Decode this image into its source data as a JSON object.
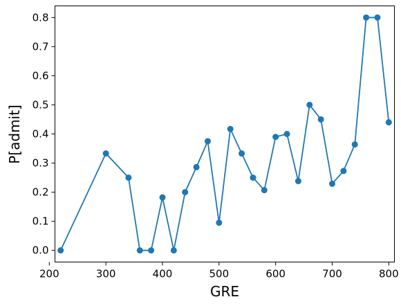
{
  "chart_data": {
    "type": "line",
    "title": "",
    "xlabel": "GRE",
    "ylabel": "P[admit]",
    "xlim": [
      210,
      810
    ],
    "ylim": [
      -0.04,
      0.84
    ],
    "xticks": [
      200,
      300,
      400,
      500,
      600,
      700,
      800
    ],
    "yticks": [
      0.0,
      0.1,
      0.2,
      0.3,
      0.4,
      0.5,
      0.6,
      0.7,
      0.8
    ],
    "xtick_labels": [
      "200",
      "300",
      "400",
      "500",
      "600",
      "700",
      "800"
    ],
    "ytick_labels": [
      "0.0",
      "0.1",
      "0.2",
      "0.3",
      "0.4",
      "0.5",
      "0.6",
      "0.7",
      "0.8"
    ],
    "grid": false,
    "series": [
      {
        "color": "#1f77b4",
        "marker": "circle",
        "x": [
          220,
          300,
          340,
          360,
          380,
          400,
          420,
          440,
          460,
          480,
          500,
          520,
          540,
          560,
          580,
          600,
          620,
          640,
          660,
          680,
          700,
          720,
          740,
          760,
          780,
          800
        ],
        "y": [
          0.0,
          0.333,
          0.25,
          0.0,
          0.0,
          0.182,
          0.0,
          0.2,
          0.286,
          0.375,
          0.095,
          0.417,
          0.333,
          0.25,
          0.207,
          0.39,
          0.4,
          0.238,
          0.5,
          0.45,
          0.229,
          0.273,
          0.364,
          0.8,
          0.8,
          0.44
        ]
      }
    ]
  }
}
